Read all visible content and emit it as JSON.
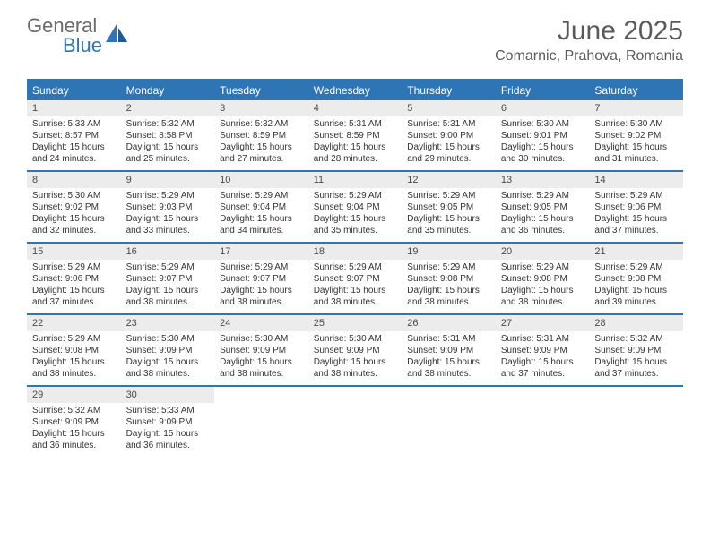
{
  "brand": {
    "part1": "General",
    "part2": "Blue"
  },
  "title": "June 2025",
  "location": "Comarnic, Prahova, Romania",
  "colors": {
    "accent": "#2e75b6",
    "header_text": "#5a5a5a",
    "daynum_bg": "#ececec"
  },
  "dow": [
    "Sunday",
    "Monday",
    "Tuesday",
    "Wednesday",
    "Thursday",
    "Friday",
    "Saturday"
  ],
  "weeks": [
    [
      {
        "n": "1",
        "sr": "Sunrise: 5:33 AM",
        "ss": "Sunset: 8:57 PM",
        "d1": "Daylight: 15 hours",
        "d2": "and 24 minutes."
      },
      {
        "n": "2",
        "sr": "Sunrise: 5:32 AM",
        "ss": "Sunset: 8:58 PM",
        "d1": "Daylight: 15 hours",
        "d2": "and 25 minutes."
      },
      {
        "n": "3",
        "sr": "Sunrise: 5:32 AM",
        "ss": "Sunset: 8:59 PM",
        "d1": "Daylight: 15 hours",
        "d2": "and 27 minutes."
      },
      {
        "n": "4",
        "sr": "Sunrise: 5:31 AM",
        "ss": "Sunset: 8:59 PM",
        "d1": "Daylight: 15 hours",
        "d2": "and 28 minutes."
      },
      {
        "n": "5",
        "sr": "Sunrise: 5:31 AM",
        "ss": "Sunset: 9:00 PM",
        "d1": "Daylight: 15 hours",
        "d2": "and 29 minutes."
      },
      {
        "n": "6",
        "sr": "Sunrise: 5:30 AM",
        "ss": "Sunset: 9:01 PM",
        "d1": "Daylight: 15 hours",
        "d2": "and 30 minutes."
      },
      {
        "n": "7",
        "sr": "Sunrise: 5:30 AM",
        "ss": "Sunset: 9:02 PM",
        "d1": "Daylight: 15 hours",
        "d2": "and 31 minutes."
      }
    ],
    [
      {
        "n": "8",
        "sr": "Sunrise: 5:30 AM",
        "ss": "Sunset: 9:02 PM",
        "d1": "Daylight: 15 hours",
        "d2": "and 32 minutes."
      },
      {
        "n": "9",
        "sr": "Sunrise: 5:29 AM",
        "ss": "Sunset: 9:03 PM",
        "d1": "Daylight: 15 hours",
        "d2": "and 33 minutes."
      },
      {
        "n": "10",
        "sr": "Sunrise: 5:29 AM",
        "ss": "Sunset: 9:04 PM",
        "d1": "Daylight: 15 hours",
        "d2": "and 34 minutes."
      },
      {
        "n": "11",
        "sr": "Sunrise: 5:29 AM",
        "ss": "Sunset: 9:04 PM",
        "d1": "Daylight: 15 hours",
        "d2": "and 35 minutes."
      },
      {
        "n": "12",
        "sr": "Sunrise: 5:29 AM",
        "ss": "Sunset: 9:05 PM",
        "d1": "Daylight: 15 hours",
        "d2": "and 35 minutes."
      },
      {
        "n": "13",
        "sr": "Sunrise: 5:29 AM",
        "ss": "Sunset: 9:05 PM",
        "d1": "Daylight: 15 hours",
        "d2": "and 36 minutes."
      },
      {
        "n": "14",
        "sr": "Sunrise: 5:29 AM",
        "ss": "Sunset: 9:06 PM",
        "d1": "Daylight: 15 hours",
        "d2": "and 37 minutes."
      }
    ],
    [
      {
        "n": "15",
        "sr": "Sunrise: 5:29 AM",
        "ss": "Sunset: 9:06 PM",
        "d1": "Daylight: 15 hours",
        "d2": "and 37 minutes."
      },
      {
        "n": "16",
        "sr": "Sunrise: 5:29 AM",
        "ss": "Sunset: 9:07 PM",
        "d1": "Daylight: 15 hours",
        "d2": "and 38 minutes."
      },
      {
        "n": "17",
        "sr": "Sunrise: 5:29 AM",
        "ss": "Sunset: 9:07 PM",
        "d1": "Daylight: 15 hours",
        "d2": "and 38 minutes."
      },
      {
        "n": "18",
        "sr": "Sunrise: 5:29 AM",
        "ss": "Sunset: 9:07 PM",
        "d1": "Daylight: 15 hours",
        "d2": "and 38 minutes."
      },
      {
        "n": "19",
        "sr": "Sunrise: 5:29 AM",
        "ss": "Sunset: 9:08 PM",
        "d1": "Daylight: 15 hours",
        "d2": "and 38 minutes."
      },
      {
        "n": "20",
        "sr": "Sunrise: 5:29 AM",
        "ss": "Sunset: 9:08 PM",
        "d1": "Daylight: 15 hours",
        "d2": "and 38 minutes."
      },
      {
        "n": "21",
        "sr": "Sunrise: 5:29 AM",
        "ss": "Sunset: 9:08 PM",
        "d1": "Daylight: 15 hours",
        "d2": "and 39 minutes."
      }
    ],
    [
      {
        "n": "22",
        "sr": "Sunrise: 5:29 AM",
        "ss": "Sunset: 9:08 PM",
        "d1": "Daylight: 15 hours",
        "d2": "and 38 minutes."
      },
      {
        "n": "23",
        "sr": "Sunrise: 5:30 AM",
        "ss": "Sunset: 9:09 PM",
        "d1": "Daylight: 15 hours",
        "d2": "and 38 minutes."
      },
      {
        "n": "24",
        "sr": "Sunrise: 5:30 AM",
        "ss": "Sunset: 9:09 PM",
        "d1": "Daylight: 15 hours",
        "d2": "and 38 minutes."
      },
      {
        "n": "25",
        "sr": "Sunrise: 5:30 AM",
        "ss": "Sunset: 9:09 PM",
        "d1": "Daylight: 15 hours",
        "d2": "and 38 minutes."
      },
      {
        "n": "26",
        "sr": "Sunrise: 5:31 AM",
        "ss": "Sunset: 9:09 PM",
        "d1": "Daylight: 15 hours",
        "d2": "and 38 minutes."
      },
      {
        "n": "27",
        "sr": "Sunrise: 5:31 AM",
        "ss": "Sunset: 9:09 PM",
        "d1": "Daylight: 15 hours",
        "d2": "and 37 minutes."
      },
      {
        "n": "28",
        "sr": "Sunrise: 5:32 AM",
        "ss": "Sunset: 9:09 PM",
        "d1": "Daylight: 15 hours",
        "d2": "and 37 minutes."
      }
    ],
    [
      {
        "n": "29",
        "sr": "Sunrise: 5:32 AM",
        "ss": "Sunset: 9:09 PM",
        "d1": "Daylight: 15 hours",
        "d2": "and 36 minutes."
      },
      {
        "n": "30",
        "sr": "Sunrise: 5:33 AM",
        "ss": "Sunset: 9:09 PM",
        "d1": "Daylight: 15 hours",
        "d2": "and 36 minutes."
      },
      null,
      null,
      null,
      null,
      null
    ]
  ]
}
